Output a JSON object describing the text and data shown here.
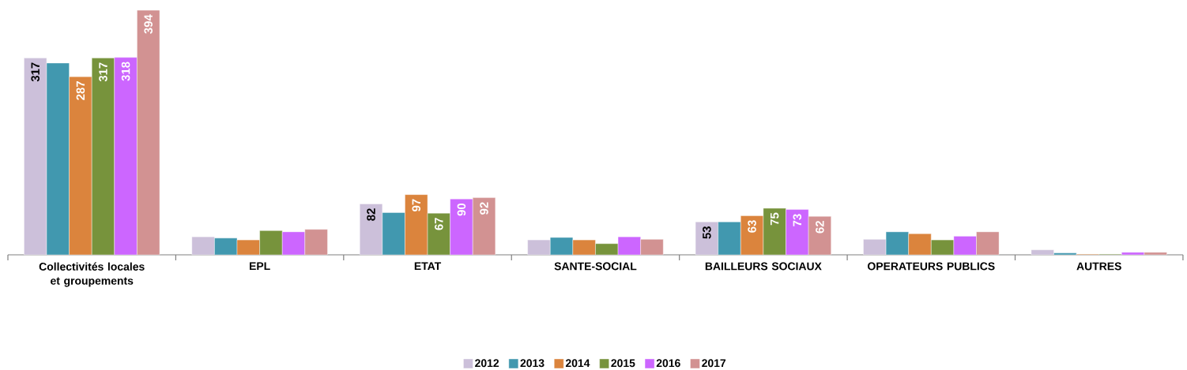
{
  "chart_data": {
    "type": "bar",
    "categories": [
      "Collectivités locales et groupements",
      "EPL",
      "ETAT",
      "SANTE-SOCIAL",
      "BAILLEURS SOCIAUX",
      "OPERATEURS PUBLICS",
      "AUTRES"
    ],
    "series": [
      {
        "name": "2012",
        "color": "#ccc0da",
        "values": [
          317,
          29,
          82,
          24,
          53,
          25,
          8
        ],
        "value_labels": [
          "317",
          null,
          "82",
          null,
          "53",
          null,
          null
        ]
      },
      {
        "name": "2013",
        "color": "#4198af",
        "values": [
          309,
          27,
          68,
          28,
          53,
          37,
          3
        ],
        "value_labels": [
          null,
          null,
          null,
          null,
          null,
          null,
          null
        ]
      },
      {
        "name": "2014",
        "color": "#db843d",
        "values": [
          287,
          24,
          97,
          24,
          63,
          34,
          1
        ],
        "value_labels": [
          "287",
          null,
          "97",
          null,
          "63",
          null,
          null
        ]
      },
      {
        "name": "2015",
        "color": "#77933c",
        "values": [
          317,
          39,
          67,
          18,
          75,
          24,
          1
        ],
        "value_labels": [
          "317",
          null,
          "67",
          null,
          "75",
          null,
          null
        ]
      },
      {
        "name": "2016",
        "color": "#cc66ff",
        "values": [
          318,
          37,
          90,
          29,
          73,
          30,
          4
        ],
        "value_labels": [
          "318",
          null,
          "90",
          null,
          "73",
          null,
          null
        ]
      },
      {
        "name": "2017",
        "color": "#d29292",
        "values": [
          394,
          41,
          92,
          25,
          62,
          37,
          4
        ],
        "value_labels": [
          "394",
          null,
          "92",
          null,
          "62",
          null,
          null
        ]
      }
    ],
    "legend": "bottom"
  }
}
